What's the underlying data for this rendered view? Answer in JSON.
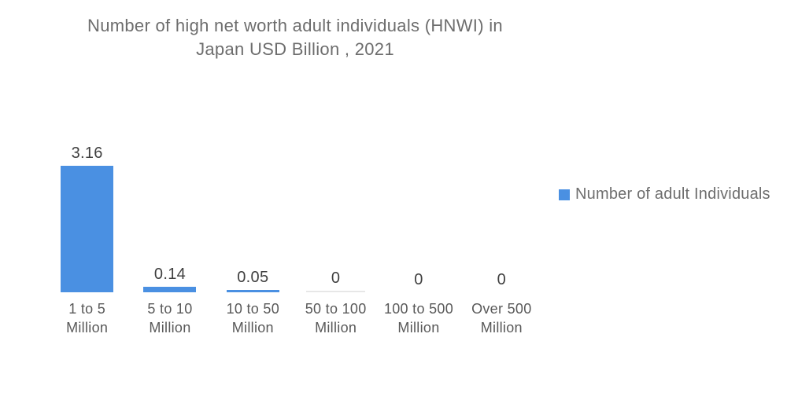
{
  "page": {
    "title_lines": [
      "Number of high net worth adult individuals (HNWI) in",
      "Japan USD Billion , 2021"
    ]
  },
  "chart_data": {
    "type": "bar",
    "title": "Number of high net worth adult individuals (HNWI) in Japan USD Billion , 2021",
    "categories": [
      "1 to 5 Million",
      "5 to 10 Million",
      "10 to 50 Million",
      "50 to 100 Million",
      "100 to 500 Million",
      "Over 500 Million"
    ],
    "categories_lines": [
      [
        "1 to 5",
        "Million"
      ],
      [
        "5 to 10",
        "Million"
      ],
      [
        "10 to 50",
        "Million"
      ],
      [
        "50 to 100",
        "Million"
      ],
      [
        "100 to 500",
        "Million"
      ],
      [
        "Over 500",
        "Million"
      ]
    ],
    "values": [
      3.16,
      0.14,
      0.05,
      0,
      0,
      0
    ],
    "value_labels": [
      "3.16",
      "0.14",
      "0.05",
      "0",
      "0",
      "0"
    ],
    "xlabel": "",
    "ylabel": "",
    "ylim": [
      0,
      3.5
    ],
    "grid": false,
    "data_labels": true,
    "legend": [
      "Number of adult Individuals"
    ],
    "legend_position": "right",
    "colors": {
      "bar": "#4a90e2",
      "value_label": "#3f3f3f",
      "category_label": "#595959",
      "title": "#6d6d6d",
      "legend_text": "#6e6e6e",
      "zero_baseline": "#e7e7e7"
    }
  }
}
